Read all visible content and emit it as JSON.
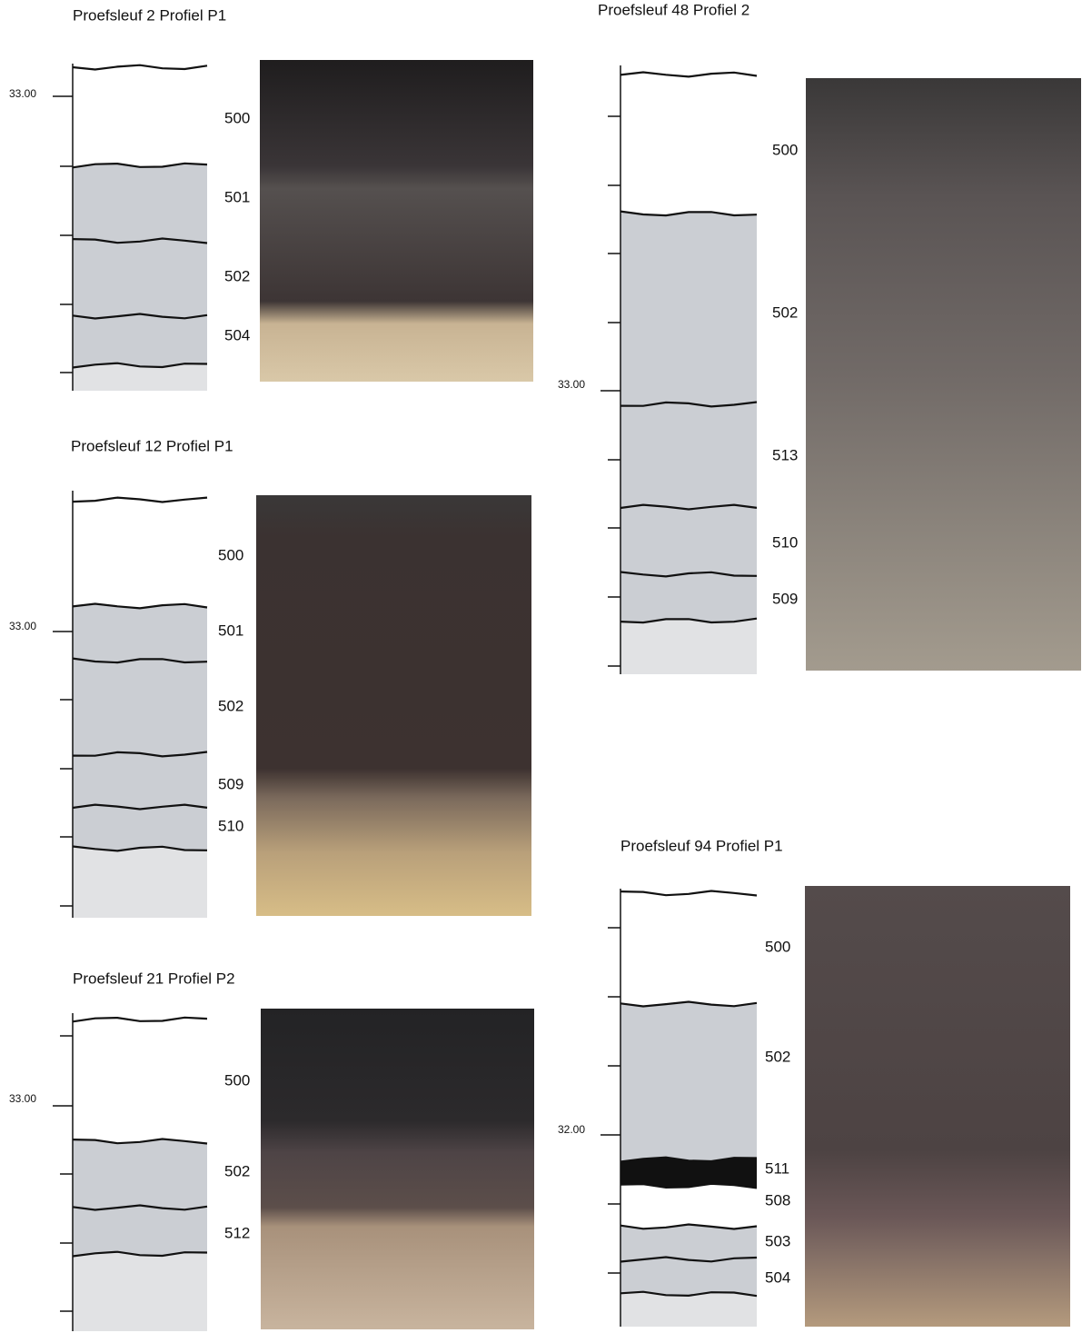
{
  "panels": [
    {
      "title": "Proefsleuf 2 Profiel P1",
      "scale_label": "33.00",
      "layers": [
        "500",
        "501",
        "502",
        "504"
      ]
    },
    {
      "title": "Proefsleuf 12 Profiel P1",
      "scale_label": "33.00",
      "layers": [
        "500",
        "501",
        "502",
        "509",
        "510"
      ]
    },
    {
      "title": "Proefsleuf 21 Profiel P2",
      "scale_label": "33.00",
      "layers": [
        "500",
        "502",
        "512"
      ]
    },
    {
      "title": "Proefsleuf 48 Profiel 2",
      "scale_label": "33.00",
      "layers": [
        "500",
        "502",
        "513",
        "510",
        "509"
      ]
    },
    {
      "title": "Proefsleuf 94 Profiel P1",
      "scale_label": "32.00",
      "layers": [
        "500",
        "502",
        "511",
        "508",
        "503",
        "504"
      ]
    }
  ]
}
